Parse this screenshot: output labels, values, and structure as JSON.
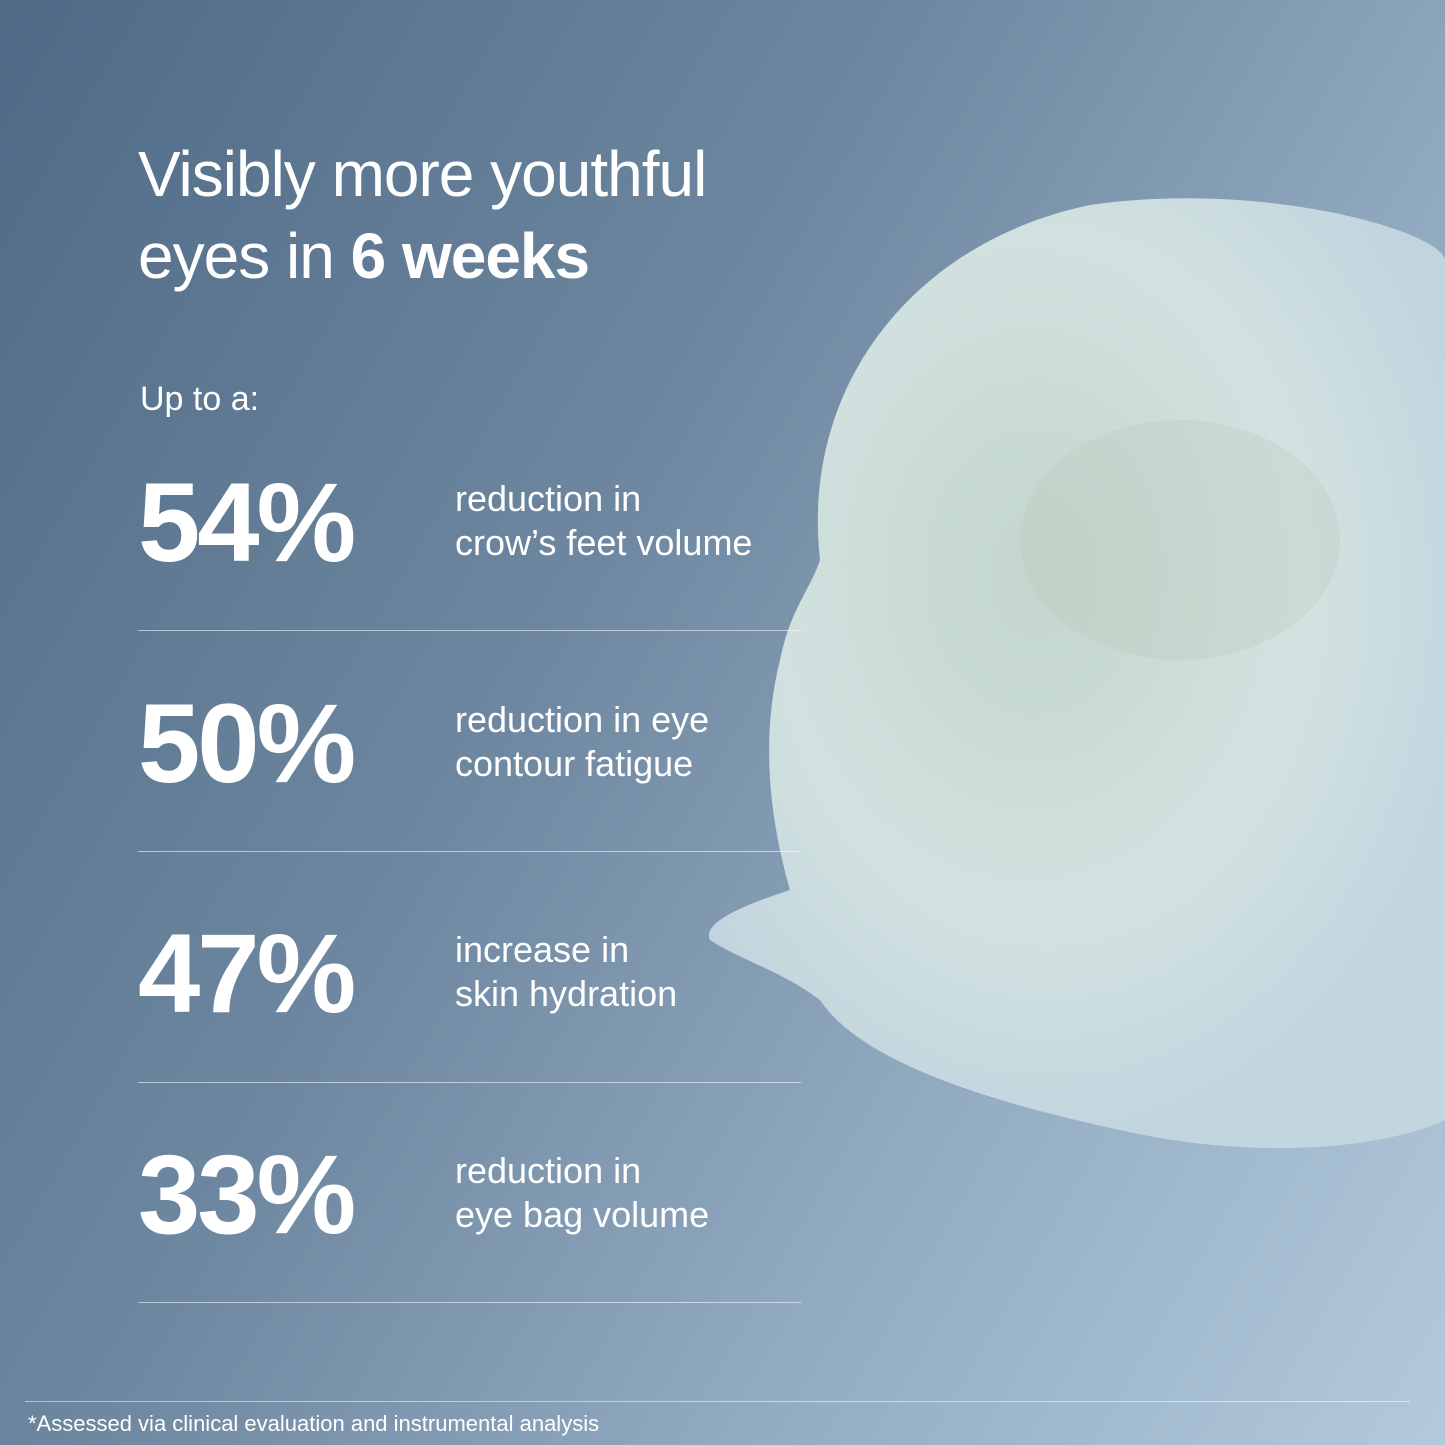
{
  "headline": {
    "line1": "Visibly more youthful",
    "line2_prefix": "eyes in",
    "line2_bold": "6 weeks"
  },
  "intro": "Up to a:",
  "stats": [
    {
      "value": "54%",
      "lines": [
        "reduction in",
        "crow’s feet volume"
      ]
    },
    {
      "value": "50%",
      "lines": [
        "reduction in eye",
        "contour fatigue"
      ]
    },
    {
      "value": "47%",
      "lines": [
        "increase in",
        "skin hydration"
      ]
    },
    {
      "value": "33%",
      "lines": [
        "reduction in",
        "eye bag volume"
      ]
    }
  ],
  "footnote": "*Assessed via clinical evaluation and instrumental analysis"
}
